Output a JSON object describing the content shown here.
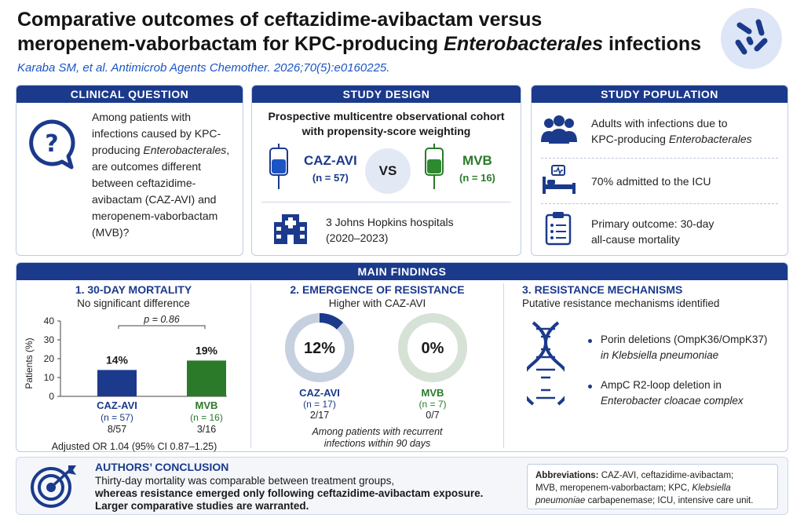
{
  "header": {
    "title_line1": "Comparative outcomes of ceftazidime-avibactam versus",
    "title_line2_pre": "meropenem-vaborbactam for KPC-producing ",
    "title_line2_italic": "Enterobacterales",
    "title_line2_post": " infections",
    "citation": "Karaba SM, et al. Antimicrob Agents Chemother. 2026;70(5):e0160225."
  },
  "clinical_question": {
    "heading": "CLINICAL QUESTION",
    "text_pre": "Among patients with infections caused by KPC-producing ",
    "text_italic": "Enterobacterales",
    "text_post": ", are outcomes different between ceftazidime-avibactam (CAZ-AVI) and meropenem-vaborbactam (MVB)?"
  },
  "study_design": {
    "heading": "STUDY DESIGN",
    "subtitle_line1": "Prospective multicentre observational cohort",
    "subtitle_line2": "with propensity-score weighting",
    "arm1_label": "CAZ-AVI",
    "arm1_n": "(n = 57)",
    "vs": "VS",
    "arm2_label": "MVB",
    "arm2_n": "(n = 16)",
    "sites_line1": "3 Johns Hopkins hospitals",
    "sites_line2": "(2020–2023)"
  },
  "study_population": {
    "heading": "STUDY POPULATION",
    "item1_line1": "Adults with infections due to",
    "item1_line2_pre": "KPC-producing ",
    "item1_line2_italic": "Enterobacterales",
    "item2": "70% admitted to the ICU",
    "item3_line1": "Primary outcome: 30-day",
    "item3_line2": "all-cause mortality"
  },
  "main_findings": {
    "heading": "MAIN FINDINGS",
    "mortality": {
      "title": "1. 30-DAY MORTALITY",
      "subtitle": "No significant difference",
      "p_value": "p = 0.86",
      "or_text": "Adjusted OR 1.04 (95% CI 0.87–1.25)"
    },
    "resistance": {
      "title": "2. EMERGENCE OF RESISTANCE",
      "subtitle": "Higher with CAZ-AVI",
      "donut1_value": "12%",
      "donut1_label": "CAZ-AVI",
      "donut1_n": "(n = 17)",
      "donut1_frac": "2/17",
      "donut1_fraction_value": 0.12,
      "donut2_value": "0%",
      "donut2_label": "MVB",
      "donut2_n": "(n = 7)",
      "donut2_frac": "0/7",
      "donut2_fraction_value": 0,
      "note_line1": "Among patients with recurrent",
      "note_line2": "infections within 90 days"
    },
    "mechanisms": {
      "title": "3. RESISTANCE MECHANISMS",
      "subtitle": "Putative resistance mechanisms identified",
      "m1_line1": "Porin deletions (OmpK36/OmpK37)",
      "m1_line2": "in Klebsiella pneumoniae",
      "m2_line1": "AmpC R2-loop deletion in",
      "m2_line2": "Enterobacter cloacae complex"
    }
  },
  "chart_data": {
    "type": "bar",
    "categories": [
      "CAZ-AVI",
      "MVB"
    ],
    "category_n": [
      "(n = 57)",
      "(n = 16)"
    ],
    "category_frac": [
      "8/57",
      "3/16"
    ],
    "values": [
      14,
      19
    ],
    "value_labels": [
      "14%",
      "19%"
    ],
    "ylabel": "Patients (%)",
    "ylim": [
      0,
      40
    ],
    "yticks": [
      "0",
      "10",
      "20",
      "30",
      "40"
    ],
    "colors": [
      "#1b3a8c",
      "#2a7a2a"
    ],
    "grid": false
  },
  "conclusion": {
    "heading": "AUTHORS’ CONCLUSION",
    "line1": "Thirty-day mortality was comparable between treatment groups,",
    "line2": "whereas resistance emerged only following ceftazidime-avibactam exposure.",
    "line3": "Larger comparative studies are warranted."
  },
  "abbreviations": {
    "label": "Abbreviations:",
    "line1": " CAZ-AVI, ceftazidime-avibactam;",
    "line2_pre": "MVB, meropenem-vaborbactam; KPC, ",
    "line2_italic": "Klebsiella",
    "line3_italic": "pneumoniae",
    "line3_post": " carbapenemase; ICU, intensive care unit."
  },
  "colors": {
    "accent": "#1b3a8c",
    "mvb_green": "#2a7a2a",
    "link_blue": "#1b55c4"
  }
}
